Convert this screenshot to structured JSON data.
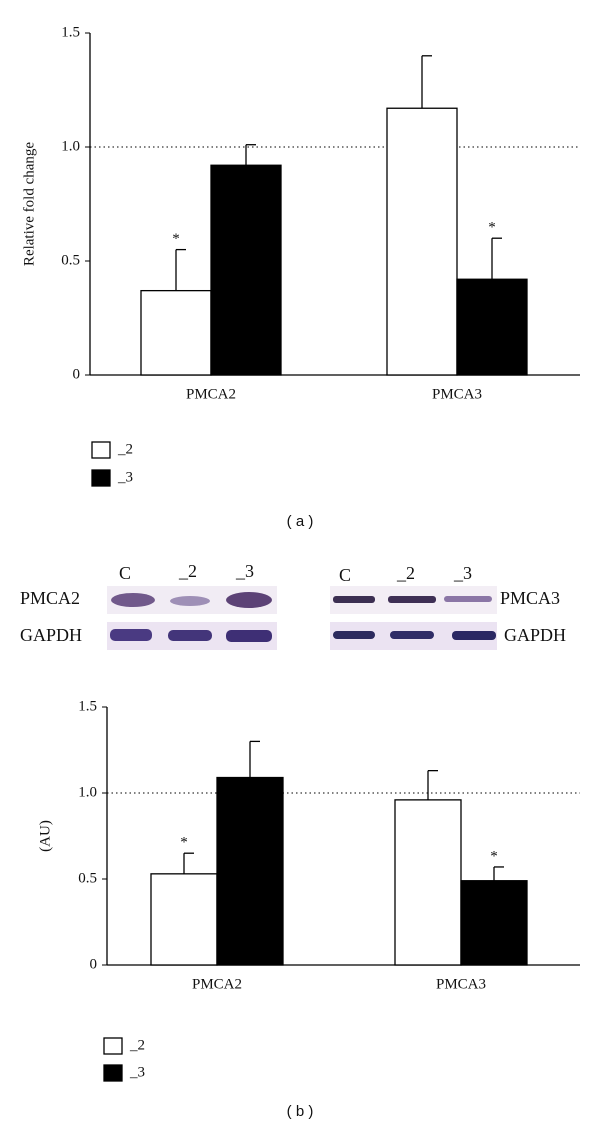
{
  "chart_data": [
    {
      "type": "bar",
      "ylabel": "Relative fold change",
      "categories": [
        "PMCA2",
        "PMCA3"
      ],
      "series": [
        {
          "name": "_2",
          "color": "#ffffff",
          "values": [
            0.37,
            1.17
          ],
          "errors": [
            0.18,
            0.23
          ],
          "markers": [
            "*",
            null
          ]
        },
        {
          "name": "_3",
          "color": "#000000",
          "values": [
            0.92,
            0.42
          ],
          "errors": [
            0.09,
            0.18
          ],
          "markers": [
            null,
            "*"
          ]
        }
      ],
      "ylim": [
        0,
        1.5
      ],
      "yticks": [
        0,
        0.5,
        {
          "value": 1,
          "label": "1.0"
        },
        1.5
      ],
      "reference_line": 1,
      "caption": "( a )"
    },
    {
      "type": "bar",
      "ylabel": "(AU)",
      "categories": [
        "PMCA2",
        "PMCA3"
      ],
      "series": [
        {
          "name": "_2",
          "color": "#ffffff",
          "values": [
            0.53,
            0.96
          ],
          "errors": [
            0.12,
            0.17
          ],
          "markers": [
            "*",
            null
          ]
        },
        {
          "name": "_3",
          "color": "#000000",
          "values": [
            1.09,
            0.49
          ],
          "errors": [
            0.21,
            0.08
          ],
          "markers": [
            null,
            "*"
          ]
        }
      ],
      "ylim": [
        0,
        1.5
      ],
      "yticks": [
        0,
        0.5,
        {
          "value": 1,
          "label": "1.0"
        },
        1.5
      ],
      "reference_line": 1,
      "caption": "( b )"
    }
  ],
  "blot": {
    "lanes_left": [
      "C",
      "_2",
      "_3"
    ],
    "rows_left": [
      "PMCA2",
      "GAPDH"
    ],
    "lanes_right": [
      "C",
      "_2",
      "_3"
    ],
    "rows_right": [
      "PMCA3",
      "GAPDH"
    ]
  }
}
